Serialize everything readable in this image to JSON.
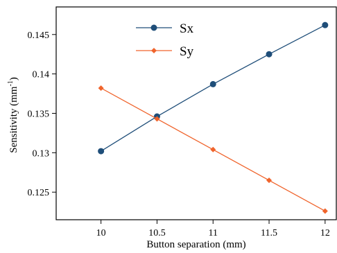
{
  "chart_data": {
    "type": "line",
    "xlabel": "Button separation (mm)",
    "ylabel": "Sensitivity (mm",
    "ylabel_sup": "-1",
    "ylabel_end": ")",
    "xlim": [
      9.6,
      12.1
    ],
    "ylim": [
      0.1215,
      0.1485
    ],
    "x": [
      10,
      10.5,
      11,
      11.5,
      12
    ],
    "xticks": [
      "10",
      "10.5",
      "11",
      "11.5",
      "12"
    ],
    "yticks": [
      "0.125",
      "0.13",
      "0.135",
      "0.14",
      "0.145"
    ],
    "ytick_values": [
      0.125,
      0.13,
      0.135,
      0.14,
      0.145
    ],
    "legend_position": "top-center",
    "series": [
      {
        "name": "Sx",
        "values": [
          0.1302,
          0.1346,
          0.1387,
          0.1425,
          0.1462
        ],
        "color": "#1f4e79",
        "marker": "circle"
      },
      {
        "name": "Sy",
        "values": [
          0.1382,
          0.1343,
          0.1304,
          0.1265,
          0.1226
        ],
        "color": "#f0642c",
        "marker": "diamond"
      }
    ]
  }
}
